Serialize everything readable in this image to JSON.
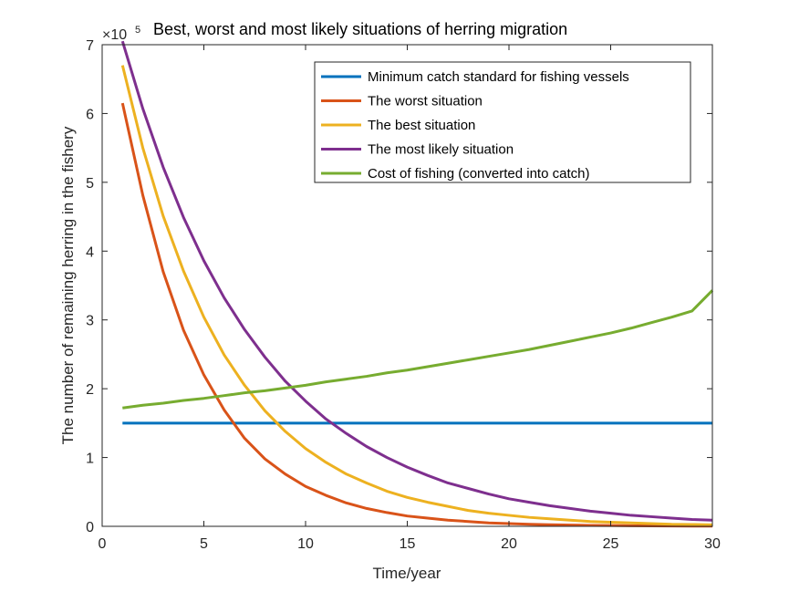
{
  "chart_data": {
    "type": "line",
    "title": "Best, worst and most likely situations of herring migration",
    "xlabel": "Time/year",
    "ylabel": "The number of remaining herring in the fishery",
    "y_exponent_base": "×10",
    "y_exponent_power": "5",
    "xlim": [
      0,
      30
    ],
    "ylim": [
      0,
      7
    ],
    "xticks": [
      "0",
      "5",
      "10",
      "15",
      "20",
      "25",
      "30"
    ],
    "yticks": [
      "0",
      "1",
      "2",
      "3",
      "4",
      "5",
      "6",
      "7"
    ],
    "grid": false,
    "legend_position": "top-right",
    "x": [
      1,
      2,
      3,
      4,
      5,
      6,
      7,
      8,
      9,
      10,
      11,
      12,
      13,
      14,
      15,
      16,
      17,
      18,
      19,
      20,
      21,
      22,
      23,
      24,
      25,
      26,
      27,
      28,
      29,
      30
    ],
    "series": [
      {
        "name": "Minimum catch standard for fishing vessels",
        "color": "#0072BD",
        "values": [
          1.5,
          1.5,
          1.5,
          1.5,
          1.5,
          1.5,
          1.5,
          1.5,
          1.5,
          1.5,
          1.5,
          1.5,
          1.5,
          1.5,
          1.5,
          1.5,
          1.5,
          1.5,
          1.5,
          1.5,
          1.5,
          1.5,
          1.5,
          1.5,
          1.5,
          1.5,
          1.5,
          1.5,
          1.5,
          1.5
        ]
      },
      {
        "name": "The worst situation",
        "color": "#D95319",
        "values": [
          6.15,
          4.81,
          3.7,
          2.85,
          2.2,
          1.69,
          1.28,
          0.98,
          0.76,
          0.58,
          0.45,
          0.34,
          0.26,
          0.2,
          0.15,
          0.12,
          0.09,
          0.07,
          0.05,
          0.04,
          0.03,
          0.024,
          0.018,
          0.014,
          0.011,
          0.008,
          0.006,
          0.005,
          0.004,
          0.003
        ]
      },
      {
        "name": "The best situation",
        "color": "#EDB120",
        "values": [
          6.7,
          5.5,
          4.51,
          3.71,
          3.04,
          2.49,
          2.05,
          1.68,
          1.38,
          1.13,
          0.93,
          0.76,
          0.63,
          0.51,
          0.42,
          0.35,
          0.29,
          0.23,
          0.19,
          0.16,
          0.13,
          0.11,
          0.09,
          0.07,
          0.06,
          0.05,
          0.04,
          0.03,
          0.027,
          0.022
        ]
      },
      {
        "name": "The most likely situation",
        "color": "#7E2F8E",
        "values": [
          7.05,
          6.07,
          5.22,
          4.49,
          3.86,
          3.32,
          2.86,
          2.46,
          2.11,
          1.82,
          1.56,
          1.35,
          1.16,
          1.0,
          0.86,
          0.74,
          0.63,
          0.55,
          0.47,
          0.4,
          0.35,
          0.3,
          0.26,
          0.22,
          0.19,
          0.16,
          0.14,
          0.12,
          0.1,
          0.09
        ]
      },
      {
        "name": "Cost of fishing (converted into catch)",
        "color": "#77AC30",
        "values": [
          1.72,
          1.76,
          1.79,
          1.83,
          1.86,
          1.9,
          1.94,
          1.97,
          2.01,
          2.05,
          2.1,
          2.14,
          2.18,
          2.23,
          2.27,
          2.32,
          2.37,
          2.42,
          2.47,
          2.52,
          2.57,
          2.63,
          2.69,
          2.75,
          2.81,
          2.88,
          2.96,
          3.04,
          3.13,
          3.43
        ]
      }
    ]
  }
}
